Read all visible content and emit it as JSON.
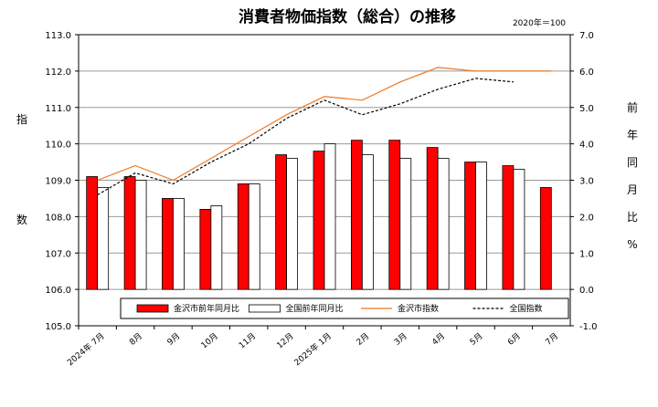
{
  "chart_data": {
    "type": "bar+line",
    "title": "消費者物価指数（総合）の推移",
    "base_note": "2020年＝100",
    "left_axis": {
      "ylim": [
        105.0,
        113.0
      ],
      "step": 1.0,
      "label_chars": [
        "指",
        "数"
      ]
    },
    "right_axis": {
      "ylim": [
        -1.0,
        7.0
      ],
      "step": 1.0,
      "label_chars": [
        "前",
        "年",
        "同",
        "月",
        "比",
        "%"
      ]
    },
    "categories": [
      {
        "month": "7月",
        "year": "2024年"
      },
      {
        "month": "8月",
        "year": ""
      },
      {
        "month": "9月",
        "year": ""
      },
      {
        "month": "10月",
        "year": ""
      },
      {
        "month": "11月",
        "year": ""
      },
      {
        "month": "12月",
        "year": ""
      },
      {
        "month": "1月",
        "year": "2025年"
      },
      {
        "month": "2月",
        "year": ""
      },
      {
        "month": "3月",
        "year": ""
      },
      {
        "month": "4月",
        "year": ""
      },
      {
        "month": "5月",
        "year": ""
      },
      {
        "month": "6月",
        "year": ""
      },
      {
        "month": "7月",
        "year": ""
      }
    ],
    "bar_series": [
      {
        "name": "金沢市前年同月比",
        "color": "#ff0000",
        "axis": "right",
        "values": [
          3.1,
          3.1,
          2.5,
          2.2,
          2.9,
          3.7,
          3.8,
          4.1,
          4.1,
          3.9,
          3.5,
          3.4,
          2.8
        ]
      },
      {
        "name": "全国前年同月比",
        "color": "#ffffff",
        "axis": "right",
        "values": [
          2.8,
          3.0,
          2.5,
          2.3,
          2.9,
          3.6,
          4.0,
          3.7,
          3.6,
          3.6,
          3.5,
          3.3,
          null
        ]
      }
    ],
    "line_series": [
      {
        "name": "金沢市指数",
        "color": "#f07820",
        "style": "solid",
        "axis": "left",
        "values": [
          109.0,
          109.4,
          109.0,
          109.6,
          110.2,
          110.8,
          111.3,
          111.2,
          111.7,
          112.1,
          112.0,
          112.0,
          112.0
        ]
      },
      {
        "name": "全国指数",
        "color": "#000000",
        "style": "dashed",
        "axis": "left",
        "values": [
          108.6,
          109.2,
          108.9,
          109.5,
          110.0,
          110.7,
          111.2,
          110.8,
          111.1,
          111.5,
          111.8,
          111.7,
          null
        ]
      }
    ],
    "legend_position": "bottom-center inside plot",
    "grid": "horizontal"
  }
}
